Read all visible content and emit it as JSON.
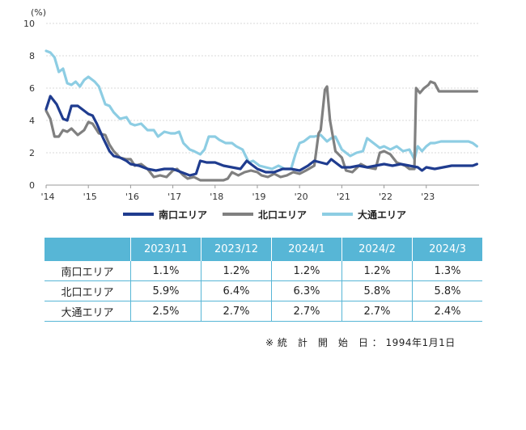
{
  "chart_data": {
    "type": "line",
    "y_unit": "(%)",
    "ylim": [
      0,
      10
    ],
    "y_ticks": [
      "0",
      "2",
      "4",
      "6",
      "8",
      "10"
    ],
    "x_tick_labels": [
      "'14",
      "'15",
      "'16",
      "'17",
      "'18",
      "'19",
      "'20",
      "'21",
      "'22",
      "'23"
    ],
    "xlim": [
      2014.0,
      2024.25
    ],
    "grid": "horizontal",
    "legend_position": "bottom",
    "series": [
      {
        "name": "南口エリア",
        "color": "#1f3c8f",
        "points": [
          [
            2014.0,
            4.7
          ],
          [
            2014.1,
            5.5
          ],
          [
            2014.25,
            5.0
          ],
          [
            2014.4,
            4.1
          ],
          [
            2014.5,
            4.0
          ],
          [
            2014.6,
            4.9
          ],
          [
            2014.75,
            4.9
          ],
          [
            2014.9,
            4.6
          ],
          [
            2015.0,
            4.4
          ],
          [
            2015.1,
            4.3
          ],
          [
            2015.2,
            3.8
          ],
          [
            2015.35,
            2.9
          ],
          [
            2015.5,
            2.1
          ],
          [
            2015.6,
            1.8
          ],
          [
            2015.75,
            1.7
          ],
          [
            2015.9,
            1.5
          ],
          [
            2016.0,
            1.3
          ],
          [
            2016.2,
            1.2
          ],
          [
            2016.4,
            1.0
          ],
          [
            2016.6,
            0.9
          ],
          [
            2016.8,
            1.0
          ],
          [
            2017.0,
            1.0
          ],
          [
            2017.2,
            0.8
          ],
          [
            2017.4,
            0.6
          ],
          [
            2017.55,
            0.7
          ],
          [
            2017.65,
            1.5
          ],
          [
            2017.8,
            1.4
          ],
          [
            2018.0,
            1.4
          ],
          [
            2018.2,
            1.2
          ],
          [
            2018.4,
            1.1
          ],
          [
            2018.6,
            1.0
          ],
          [
            2018.75,
            1.5
          ],
          [
            2018.85,
            1.3
          ],
          [
            2019.0,
            1.0
          ],
          [
            2019.2,
            0.8
          ],
          [
            2019.4,
            0.8
          ],
          [
            2019.6,
            1.0
          ],
          [
            2019.8,
            1.0
          ],
          [
            2020.0,
            0.9
          ],
          [
            2020.2,
            1.2
          ],
          [
            2020.35,
            1.5
          ],
          [
            2020.5,
            1.4
          ],
          [
            2020.65,
            1.3
          ],
          [
            2020.75,
            1.6
          ],
          [
            2020.85,
            1.4
          ],
          [
            2021.0,
            1.1
          ],
          [
            2021.2,
            1.1
          ],
          [
            2021.4,
            1.2
          ],
          [
            2021.6,
            1.1
          ],
          [
            2021.8,
            1.2
          ],
          [
            2022.0,
            1.3
          ],
          [
            2022.2,
            1.2
          ],
          [
            2022.4,
            1.3
          ],
          [
            2022.6,
            1.2
          ],
          [
            2022.8,
            1.1
          ],
          [
            2022.9,
            0.9
          ],
          [
            2023.0,
            1.1
          ],
          [
            2023.2,
            1.0
          ],
          [
            2023.4,
            1.1
          ],
          [
            2023.6,
            1.2
          ],
          [
            2023.75,
            1.2
          ],
          [
            2023.85,
            1.2
          ],
          [
            2024.0,
            1.2
          ],
          [
            2024.1,
            1.2
          ],
          [
            2024.2,
            1.3
          ]
        ]
      },
      {
        "name": "北口エリア",
        "color": "#808080",
        "points": [
          [
            2014.0,
            4.6
          ],
          [
            2014.1,
            4.1
          ],
          [
            2014.2,
            3.0
          ],
          [
            2014.3,
            3.0
          ],
          [
            2014.4,
            3.4
          ],
          [
            2014.5,
            3.3
          ],
          [
            2014.6,
            3.5
          ],
          [
            2014.75,
            3.1
          ],
          [
            2014.9,
            3.4
          ],
          [
            2015.0,
            3.9
          ],
          [
            2015.1,
            3.8
          ],
          [
            2015.25,
            3.2
          ],
          [
            2015.4,
            3.1
          ],
          [
            2015.5,
            2.5
          ],
          [
            2015.6,
            2.1
          ],
          [
            2015.75,
            1.7
          ],
          [
            2015.9,
            1.6
          ],
          [
            2016.0,
            1.6
          ],
          [
            2016.1,
            1.2
          ],
          [
            2016.25,
            1.3
          ],
          [
            2016.4,
            1.0
          ],
          [
            2016.55,
            0.5
          ],
          [
            2016.7,
            0.6
          ],
          [
            2016.85,
            0.5
          ],
          [
            2017.0,
            0.9
          ],
          [
            2017.1,
            1.0
          ],
          [
            2017.25,
            0.6
          ],
          [
            2017.35,
            0.4
          ],
          [
            2017.5,
            0.5
          ],
          [
            2017.65,
            0.3
          ],
          [
            2017.8,
            0.3
          ],
          [
            2017.95,
            0.3
          ],
          [
            2018.05,
            0.3
          ],
          [
            2018.2,
            0.3
          ],
          [
            2018.3,
            0.4
          ],
          [
            2018.4,
            0.8
          ],
          [
            2018.55,
            0.6
          ],
          [
            2018.7,
            0.8
          ],
          [
            2018.85,
            0.9
          ],
          [
            2019.0,
            0.8
          ],
          [
            2019.1,
            0.6
          ],
          [
            2019.25,
            0.5
          ],
          [
            2019.4,
            0.7
          ],
          [
            2019.55,
            0.5
          ],
          [
            2019.7,
            0.6
          ],
          [
            2019.85,
            0.8
          ],
          [
            2020.0,
            0.7
          ],
          [
            2020.15,
            0.9
          ],
          [
            2020.35,
            1.2
          ],
          [
            2020.45,
            3.2
          ],
          [
            2020.5,
            3.4
          ],
          [
            2020.6,
            5.9
          ],
          [
            2020.65,
            6.1
          ],
          [
            2020.72,
            4.0
          ],
          [
            2020.85,
            2.1
          ],
          [
            2021.0,
            1.7
          ],
          [
            2021.1,
            0.9
          ],
          [
            2021.25,
            0.8
          ],
          [
            2021.45,
            1.3
          ],
          [
            2021.6,
            1.1
          ],
          [
            2021.8,
            1.0
          ],
          [
            2021.9,
            2.0
          ],
          [
            2022.0,
            2.1
          ],
          [
            2022.15,
            1.9
          ],
          [
            2022.3,
            1.4
          ],
          [
            2022.5,
            1.2
          ],
          [
            2022.6,
            1.0
          ],
          [
            2022.72,
            1.0
          ],
          [
            2022.76,
            6.0
          ],
          [
            2022.85,
            5.7
          ],
          [
            2022.95,
            6.0
          ],
          [
            2023.05,
            6.2
          ],
          [
            2023.1,
            6.4
          ],
          [
            2023.2,
            6.3
          ],
          [
            2023.3,
            5.8
          ],
          [
            2023.35,
            5.8
          ],
          [
            2024.2,
            5.8
          ]
        ]
      },
      {
        "name": "大通エリア",
        "color": "#8dcde3",
        "points": [
          [
            2014.0,
            8.3
          ],
          [
            2014.1,
            8.2
          ],
          [
            2014.2,
            7.9
          ],
          [
            2014.3,
            7.0
          ],
          [
            2014.4,
            7.2
          ],
          [
            2014.5,
            6.3
          ],
          [
            2014.6,
            6.2
          ],
          [
            2014.7,
            6.4
          ],
          [
            2014.8,
            6.1
          ],
          [
            2014.9,
            6.5
          ],
          [
            2015.0,
            6.7
          ],
          [
            2015.15,
            6.4
          ],
          [
            2015.25,
            6.1
          ],
          [
            2015.4,
            5.0
          ],
          [
            2015.5,
            4.9
          ],
          [
            2015.6,
            4.5
          ],
          [
            2015.75,
            4.1
          ],
          [
            2015.9,
            4.2
          ],
          [
            2016.0,
            3.8
          ],
          [
            2016.1,
            3.7
          ],
          [
            2016.25,
            3.8
          ],
          [
            2016.4,
            3.4
          ],
          [
            2016.55,
            3.4
          ],
          [
            2016.65,
            3.0
          ],
          [
            2016.8,
            3.3
          ],
          [
            2016.95,
            3.2
          ],
          [
            2017.05,
            3.2
          ],
          [
            2017.15,
            3.3
          ],
          [
            2017.25,
            2.6
          ],
          [
            2017.4,
            2.2
          ],
          [
            2017.5,
            2.1
          ],
          [
            2017.65,
            1.9
          ],
          [
            2017.75,
            2.2
          ],
          [
            2017.85,
            3.0
          ],
          [
            2018.0,
            3.0
          ],
          [
            2018.1,
            2.8
          ],
          [
            2018.25,
            2.6
          ],
          [
            2018.4,
            2.6
          ],
          [
            2018.5,
            2.4
          ],
          [
            2018.65,
            2.2
          ],
          [
            2018.8,
            1.4
          ],
          [
            2018.9,
            1.5
          ],
          [
            2019.05,
            1.2
          ],
          [
            2019.2,
            1.1
          ],
          [
            2019.35,
            1.0
          ],
          [
            2019.5,
            1.2
          ],
          [
            2019.65,
            1.0
          ],
          [
            2019.8,
            1.0
          ],
          [
            2019.9,
            1.9
          ],
          [
            2020.0,
            2.6
          ],
          [
            2020.1,
            2.7
          ],
          [
            2020.25,
            3.0
          ],
          [
            2020.35,
            3.0
          ],
          [
            2020.5,
            3.1
          ],
          [
            2020.65,
            2.7
          ],
          [
            2020.75,
            2.9
          ],
          [
            2020.85,
            3.0
          ],
          [
            2021.0,
            2.2
          ],
          [
            2021.1,
            2.0
          ],
          [
            2021.2,
            1.8
          ],
          [
            2021.35,
            2.0
          ],
          [
            2021.5,
            2.1
          ],
          [
            2021.6,
            2.9
          ],
          [
            2021.75,
            2.6
          ],
          [
            2021.9,
            2.3
          ],
          [
            2022.0,
            2.4
          ],
          [
            2022.15,
            2.2
          ],
          [
            2022.3,
            2.4
          ],
          [
            2022.45,
            2.1
          ],
          [
            2022.6,
            2.2
          ],
          [
            2022.72,
            1.6
          ],
          [
            2022.8,
            2.4
          ],
          [
            2022.9,
            2.1
          ],
          [
            2023.0,
            2.4
          ],
          [
            2023.1,
            2.6
          ],
          [
            2023.2,
            2.6
          ],
          [
            2023.35,
            2.7
          ],
          [
            2023.5,
            2.7
          ],
          [
            2023.6,
            2.7
          ],
          [
            2023.8,
            2.7
          ],
          [
            2024.0,
            2.7
          ],
          [
            2024.1,
            2.6
          ],
          [
            2024.2,
            2.4
          ]
        ]
      }
    ]
  },
  "table": {
    "headers": [
      "2023/11",
      "2023/12",
      "2024/1",
      "2024/2",
      "2024/3"
    ],
    "rows": [
      {
        "label": "南口エリア",
        "values": [
          "1.1%",
          "1.2%",
          "1.2%",
          "1.2%",
          "1.3%"
        ]
      },
      {
        "label": "北口エリア",
        "values": [
          "5.9%",
          "6.4%",
          "6.3%",
          "5.8%",
          "5.8%"
        ]
      },
      {
        "label": "大通エリア",
        "values": [
          "2.5%",
          "2.7%",
          "2.7%",
          "2.7%",
          "2.4%"
        ]
      }
    ]
  },
  "note": "※ 統　計　開　始　日 ： 1994年1月1日"
}
